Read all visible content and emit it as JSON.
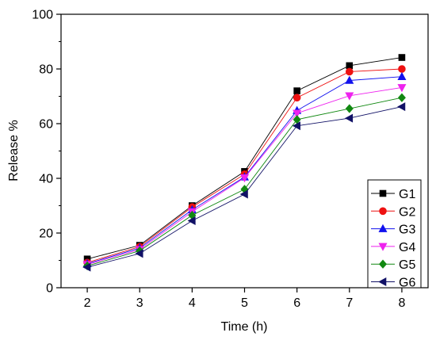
{
  "chart_data": {
    "type": "line",
    "title": "",
    "xlabel": "Time (h)",
    "ylabel": "Release %",
    "x": [
      2,
      3,
      4,
      5,
      6,
      7,
      8
    ],
    "xlim": [
      1.5,
      8.5
    ],
    "ylim": [
      0,
      100
    ],
    "yticks": [
      0,
      20,
      40,
      60,
      80,
      100
    ],
    "xticks": [
      2,
      3,
      4,
      5,
      6,
      7,
      8
    ],
    "grid": false,
    "legend_position": "bottom-right",
    "series": [
      {
        "name": "G1",
        "color": "#000000",
        "marker": "square",
        "values": [
          10.5,
          15.5,
          30.0,
          42.5,
          72.0,
          81.2,
          84.2
        ]
      },
      {
        "name": "G2",
        "color": "#ee1111",
        "marker": "circle",
        "values": [
          9.2,
          15.0,
          29.5,
          41.5,
          69.5,
          79.0,
          80.0
        ]
      },
      {
        "name": "G3",
        "color": "#1111ee",
        "marker": "triangle-up",
        "values": [
          8.8,
          14.5,
          28.5,
          40.5,
          64.8,
          75.8,
          77.2
        ]
      },
      {
        "name": "G4",
        "color": "#ee22ee",
        "marker": "triangle-down",
        "values": [
          8.5,
          14.0,
          27.8,
          40.2,
          63.8,
          70.2,
          73.2
        ]
      },
      {
        "name": "G5",
        "color": "#118811",
        "marker": "diamond",
        "values": [
          8.0,
          13.5,
          26.5,
          36.0,
          61.5,
          65.5,
          69.5
        ]
      },
      {
        "name": "G6",
        "color": "#111166",
        "marker": "triangle-left",
        "values": [
          7.5,
          12.5,
          24.5,
          34.2,
          59.2,
          62.0,
          66.2
        ]
      }
    ]
  }
}
